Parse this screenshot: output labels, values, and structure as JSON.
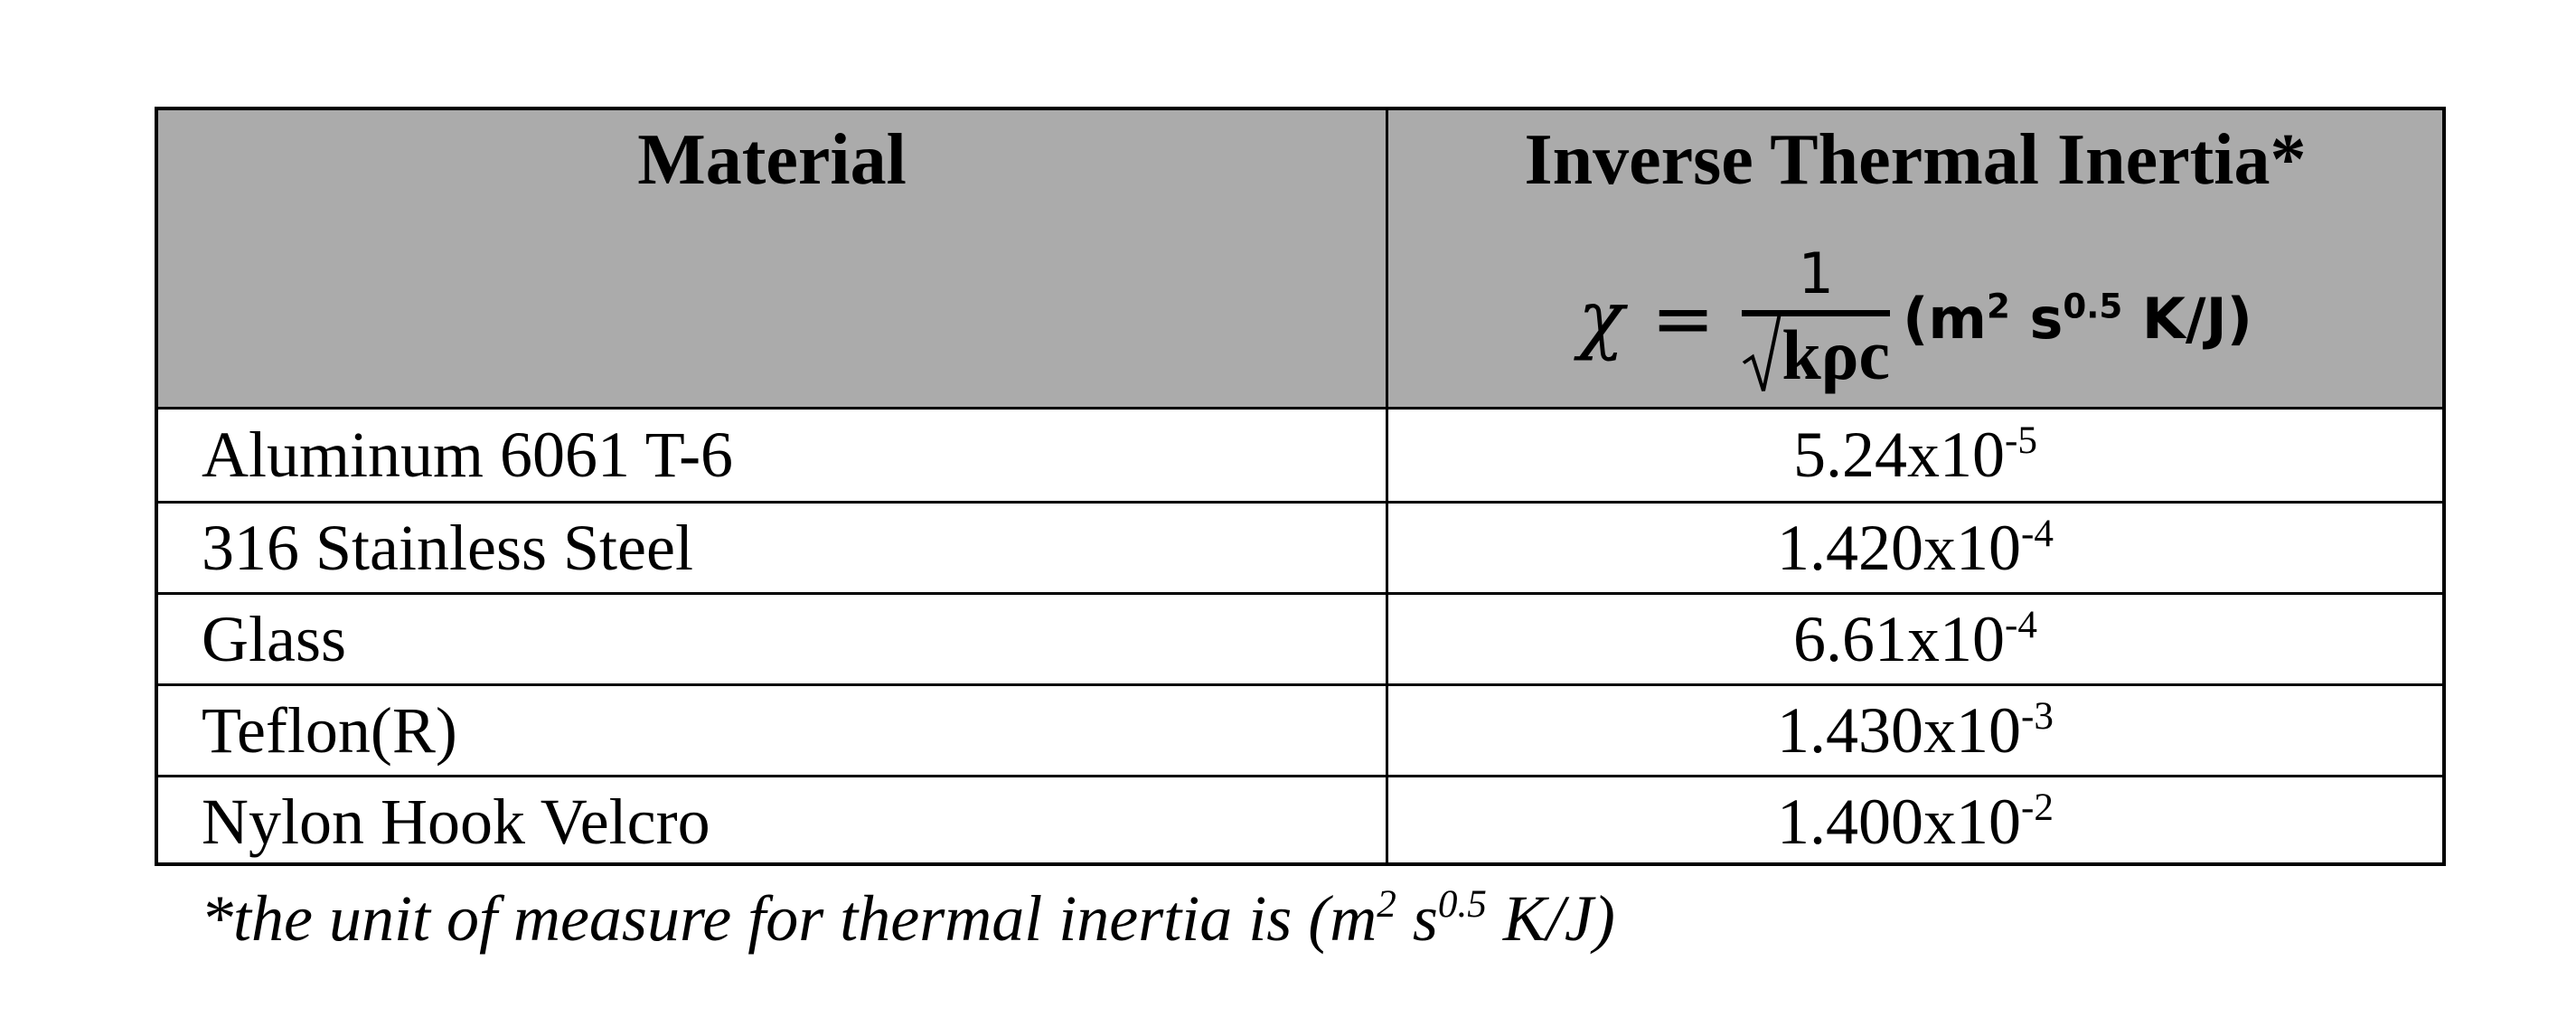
{
  "table": {
    "header": {
      "material": "Material",
      "inertia": "Inverse Thermal Inertia*",
      "formula": {
        "lhs": "χ",
        "equals": "=",
        "numerator": "1",
        "denominator": "kρc"
      },
      "unit": {
        "open": "(m",
        "sup1": "2",
        "mid": " s",
        "sup2": "0.5",
        "close": " K/J)"
      }
    },
    "rows": [
      {
        "material": "Aluminum 6061 T-6",
        "mantissa": "5.24x10",
        "exponent": "-5"
      },
      {
        "material": "316 Stainless Steel",
        "mantissa": "1.420x10",
        "exponent": "-4"
      },
      {
        "material": "Glass",
        "mantissa": "6.61x10",
        "exponent": "-4"
      },
      {
        "material": "Teflon(R)",
        "mantissa": "1.430x10",
        "exponent": "-3"
      },
      {
        "material": "Nylon Hook Velcro",
        "mantissa": "1.400x10",
        "exponent": "-2"
      }
    ]
  },
  "footnote": {
    "text": "*the unit of measure for thermal inertia is (m",
    "sup1": "2",
    "mid": " s",
    "sup2": "0.5",
    "close": " K/J)"
  }
}
